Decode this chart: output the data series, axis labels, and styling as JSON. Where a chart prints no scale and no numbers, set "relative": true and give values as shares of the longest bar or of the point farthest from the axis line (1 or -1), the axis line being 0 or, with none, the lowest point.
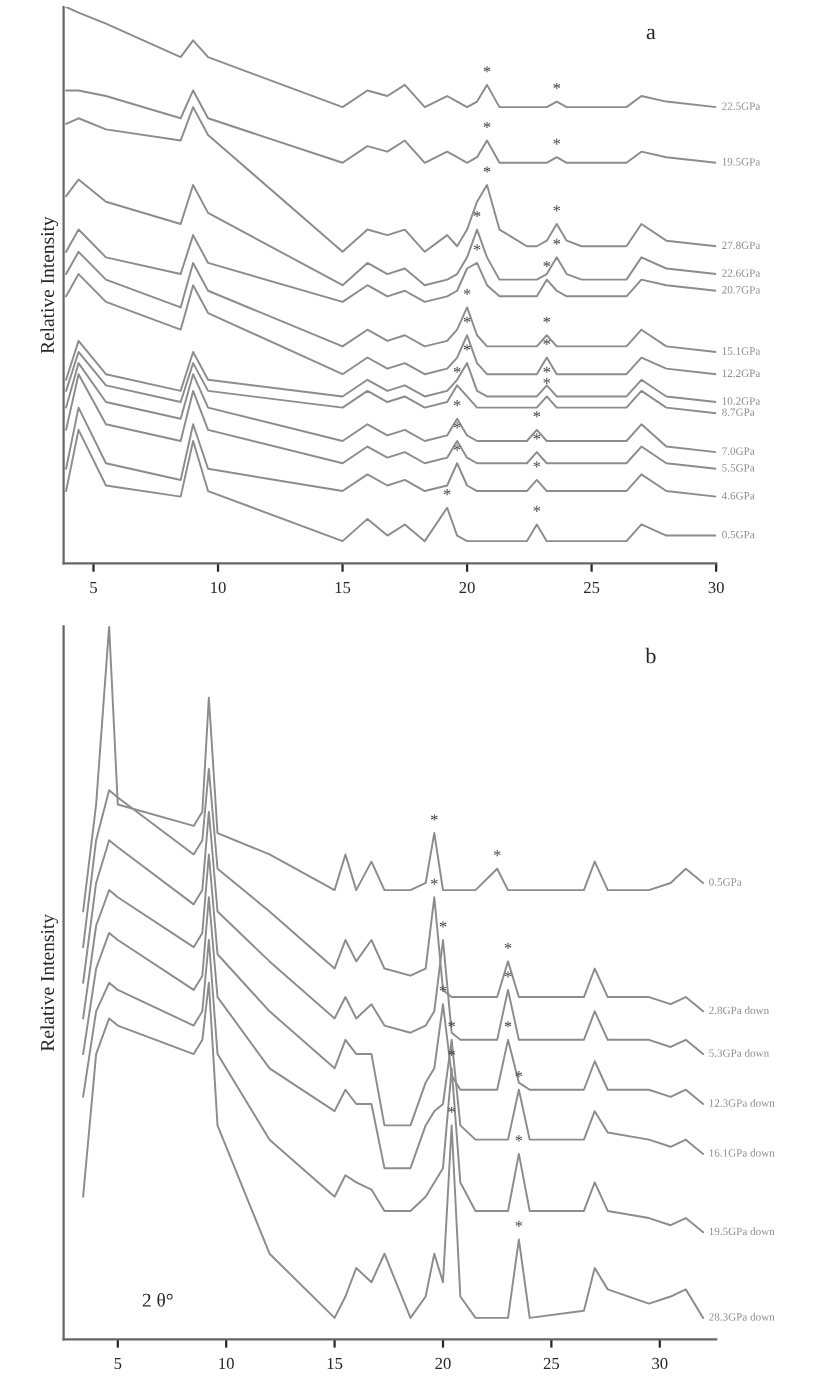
{
  "chart_data": [
    {
      "type": "line",
      "title": "a",
      "ylabel": "Relative Intensity",
      "relative": true,
      "legend": false,
      "grid": false,
      "marker": "none",
      "line_style": "solid",
      "xlim": [
        3.8,
        30
      ],
      "xticks": [
        5,
        10,
        15,
        20,
        25,
        30
      ],
      "x": [
        3.9,
        4.4,
        5.5,
        8.5,
        9.0,
        9.6,
        15.0,
        16.0,
        16.8,
        17.5,
        18.3,
        19.2,
        19.6,
        20.0,
        20.4,
        20.8,
        21.3,
        22.4,
        22.8,
        23.2,
        23.6,
        24.0,
        24.6,
        26.4,
        27.0,
        28.0,
        30.0
      ],
      "series": [
        {
          "name": "22.5GPa",
          "color": "#8c8c8c",
          "values": [
            1.0,
            0.99,
            0.97,
            0.91,
            0.94,
            0.91,
            0.82,
            0.85,
            0.84,
            0.86,
            0.82,
            0.84,
            0.83,
            0.82,
            0.83,
            0.86,
            0.82,
            0.82,
            0.82,
            0.82,
            0.83,
            0.82,
            0.82,
            0.82,
            0.84,
            0.83,
            0.82
          ]
        },
        {
          "name": "19.5GPa",
          "color": "#8c8c8c",
          "values": [
            0.85,
            0.85,
            0.84,
            0.8,
            0.85,
            0.8,
            0.72,
            0.75,
            0.74,
            0.76,
            0.72,
            0.74,
            0.73,
            0.72,
            0.73,
            0.76,
            0.72,
            0.72,
            0.72,
            0.72,
            0.73,
            0.72,
            0.72,
            0.72,
            0.74,
            0.73,
            0.72
          ]
        },
        {
          "name": "27.8GPa",
          "color": "#8c8c8c",
          "values": [
            0.79,
            0.8,
            0.78,
            0.76,
            0.82,
            0.77,
            0.56,
            0.6,
            0.59,
            0.6,
            0.56,
            0.59,
            0.57,
            0.6,
            0.65,
            0.68,
            0.6,
            0.57,
            0.57,
            0.58,
            0.61,
            0.58,
            0.57,
            0.57,
            0.61,
            0.58,
            0.57
          ]
        },
        {
          "name": "22.6GPa",
          "color": "#8c8c8c",
          "values": [
            0.66,
            0.69,
            0.65,
            0.61,
            0.68,
            0.63,
            0.5,
            0.54,
            0.52,
            0.53,
            0.5,
            0.51,
            0.52,
            0.55,
            0.6,
            0.55,
            0.51,
            0.51,
            0.51,
            0.52,
            0.55,
            0.52,
            0.51,
            0.51,
            0.55,
            0.53,
            0.52
          ]
        },
        {
          "name": "20.7GPa",
          "color": "#8c8c8c",
          "values": [
            0.56,
            0.6,
            0.55,
            0.52,
            0.59,
            0.54,
            0.47,
            0.5,
            0.48,
            0.49,
            0.47,
            0.48,
            0.49,
            0.53,
            0.54,
            0.5,
            0.48,
            0.48,
            0.48,
            0.51,
            0.49,
            0.48,
            0.48,
            0.48,
            0.51,
            0.5,
            0.49
          ]
        },
        {
          "name": "15.1GPa",
          "color": "#8c8c8c",
          "values": [
            0.52,
            0.56,
            0.51,
            0.46,
            0.54,
            0.49,
            0.39,
            0.42,
            0.4,
            0.41,
            0.39,
            0.4,
            0.42,
            0.46,
            0.41,
            0.39,
            0.39,
            0.39,
            0.39,
            0.41,
            0.39,
            0.39,
            0.39,
            0.39,
            0.42,
            0.39,
            0.38
          ]
        },
        {
          "name": "12.2GPa",
          "color": "#8c8c8c",
          "values": [
            0.48,
            0.52,
            0.47,
            0.42,
            0.5,
            0.45,
            0.34,
            0.37,
            0.35,
            0.36,
            0.34,
            0.35,
            0.37,
            0.41,
            0.36,
            0.34,
            0.34,
            0.34,
            0.34,
            0.37,
            0.34,
            0.34,
            0.34,
            0.34,
            0.37,
            0.35,
            0.34
          ]
        },
        {
          "name": "10.2GPa",
          "color": "#8c8c8c",
          "values": [
            0.33,
            0.4,
            0.34,
            0.31,
            0.38,
            0.33,
            0.3,
            0.33,
            0.31,
            0.32,
            0.3,
            0.31,
            0.33,
            0.36,
            0.31,
            0.3,
            0.3,
            0.3,
            0.3,
            0.32,
            0.3,
            0.3,
            0.3,
            0.3,
            0.33,
            0.3,
            0.29
          ]
        },
        {
          "name": "8.7GPa",
          "color": "#8c8c8c",
          "values": [
            0.31,
            0.38,
            0.32,
            0.29,
            0.36,
            0.31,
            0.28,
            0.31,
            0.29,
            0.3,
            0.28,
            0.29,
            0.32,
            0.3,
            0.28,
            0.28,
            0.28,
            0.28,
            0.28,
            0.3,
            0.28,
            0.28,
            0.28,
            0.28,
            0.31,
            0.28,
            0.27
          ]
        },
        {
          "name": "7.0GPa",
          "color": "#8c8c8c",
          "values": [
            0.28,
            0.36,
            0.29,
            0.26,
            0.34,
            0.28,
            0.22,
            0.25,
            0.23,
            0.24,
            0.22,
            0.23,
            0.26,
            0.23,
            0.22,
            0.22,
            0.22,
            0.22,
            0.24,
            0.22,
            0.22,
            0.22,
            0.22,
            0.22,
            0.25,
            0.21,
            0.2
          ]
        },
        {
          "name": "5.5GPa",
          "color": "#8c8c8c",
          "values": [
            0.24,
            0.34,
            0.25,
            0.22,
            0.31,
            0.24,
            0.18,
            0.21,
            0.19,
            0.2,
            0.18,
            0.19,
            0.22,
            0.19,
            0.18,
            0.18,
            0.18,
            0.18,
            0.2,
            0.18,
            0.18,
            0.18,
            0.18,
            0.18,
            0.21,
            0.18,
            0.17
          ]
        },
        {
          "name": "4.6GPa",
          "color": "#8c8c8c",
          "values": [
            0.17,
            0.28,
            0.18,
            0.15,
            0.25,
            0.17,
            0.13,
            0.16,
            0.14,
            0.15,
            0.13,
            0.14,
            0.18,
            0.14,
            0.13,
            0.13,
            0.13,
            0.13,
            0.15,
            0.13,
            0.13,
            0.13,
            0.13,
            0.13,
            0.16,
            0.13,
            0.12
          ]
        },
        {
          "name": "0.5GPa",
          "color": "#8c8c8c",
          "values": [
            0.13,
            0.24,
            0.14,
            0.12,
            0.22,
            0.13,
            0.04,
            0.08,
            0.05,
            0.07,
            0.04,
            0.1,
            0.05,
            0.04,
            0.04,
            0.04,
            0.04,
            0.04,
            0.07,
            0.04,
            0.04,
            0.04,
            0.04,
            0.04,
            0.07,
            0.05,
            0.05
          ]
        }
      ],
      "annotations": [
        {
          "text": "*",
          "x": 20.8,
          "y": 0.86
        },
        {
          "text": "*",
          "x": 23.6,
          "y": 0.83
        },
        {
          "text": "*",
          "x": 20.8,
          "y": 0.76
        },
        {
          "text": "*",
          "x": 23.6,
          "y": 0.73
        },
        {
          "text": "*",
          "x": 20.8,
          "y": 0.68
        },
        {
          "text": "*",
          "x": 23.6,
          "y": 0.61
        },
        {
          "text": "*",
          "x": 20.4,
          "y": 0.6
        },
        {
          "text": "*",
          "x": 23.6,
          "y": 0.55
        },
        {
          "text": "*",
          "x": 20.4,
          "y": 0.54
        },
        {
          "text": "*",
          "x": 23.2,
          "y": 0.51
        },
        {
          "text": "*",
          "x": 20.0,
          "y": 0.46
        },
        {
          "text": "*",
          "x": 23.2,
          "y": 0.41
        },
        {
          "text": "*",
          "x": 20.0,
          "y": 0.41
        },
        {
          "text": "*",
          "x": 23.2,
          "y": 0.37
        },
        {
          "text": "*",
          "x": 20.0,
          "y": 0.36
        },
        {
          "text": "*",
          "x": 23.2,
          "y": 0.32
        },
        {
          "text": "*",
          "x": 19.6,
          "y": 0.32
        },
        {
          "text": "*",
          "x": 23.2,
          "y": 0.3
        },
        {
          "text": "*",
          "x": 19.6,
          "y": 0.26
        },
        {
          "text": "*",
          "x": 22.8,
          "y": 0.24
        },
        {
          "text": "*",
          "x": 19.6,
          "y": 0.22
        },
        {
          "text": "*",
          "x": 22.8,
          "y": 0.2
        },
        {
          "text": "*",
          "x": 19.6,
          "y": 0.18
        },
        {
          "text": "*",
          "x": 22.8,
          "y": 0.15
        },
        {
          "text": "*",
          "x": 19.2,
          "y": 0.1
        },
        {
          "text": "*",
          "x": 22.8,
          "y": 0.07
        }
      ]
    },
    {
      "type": "line",
      "title": "b",
      "ylabel": "Relative Intensity",
      "xlabel": "2 θ°",
      "relative": true,
      "legend": false,
      "grid": false,
      "marker": "none",
      "line_style": "solid",
      "xlim": [
        2.5,
        32.6
      ],
      "xticks": [
        5,
        10,
        15,
        20,
        25,
        30
      ],
      "x": [
        3.4,
        4.0,
        4.6,
        5.0,
        8.5,
        8.9,
        9.2,
        9.6,
        12.0,
        15.0,
        15.5,
        16.0,
        16.7,
        17.3,
        18.5,
        19.2,
        19.6,
        20.0,
        20.4,
        20.8,
        21.5,
        22.5,
        23.0,
        23.5,
        24.0,
        26.5,
        27.0,
        27.6,
        29.5,
        30.5,
        31.2,
        32.0
      ],
      "series": [
        {
          "name": "0.5GPa",
          "color": "#8c8c8c",
          "values": [
            0.6,
            0.75,
            1.0,
            0.75,
            0.72,
            0.74,
            0.9,
            0.71,
            0.68,
            0.63,
            0.68,
            0.63,
            0.67,
            0.63,
            0.63,
            0.64,
            0.71,
            0.63,
            0.63,
            0.63,
            0.63,
            0.66,
            0.63,
            0.63,
            0.63,
            0.63,
            0.67,
            0.63,
            0.63,
            0.64,
            0.66,
            0.64
          ]
        },
        {
          "name": "2.8GPa down",
          "color": "#8c8c8c",
          "values": [
            0.55,
            0.7,
            0.77,
            0.76,
            0.68,
            0.7,
            0.8,
            0.66,
            0.6,
            0.52,
            0.56,
            0.53,
            0.56,
            0.52,
            0.51,
            0.52,
            0.62,
            0.49,
            0.48,
            0.48,
            0.48,
            0.48,
            0.53,
            0.48,
            0.48,
            0.48,
            0.52,
            0.48,
            0.48,
            0.47,
            0.48,
            0.46
          ]
        },
        {
          "name": "5.3GPa down",
          "color": "#8c8c8c",
          "values": [
            0.5,
            0.64,
            0.7,
            0.69,
            0.61,
            0.63,
            0.74,
            0.6,
            0.53,
            0.45,
            0.48,
            0.45,
            0.47,
            0.44,
            0.43,
            0.44,
            0.46,
            0.56,
            0.43,
            0.42,
            0.42,
            0.42,
            0.49,
            0.42,
            0.42,
            0.42,
            0.46,
            0.42,
            0.42,
            0.41,
            0.42,
            0.4
          ]
        },
        {
          "name": "12.3GPa down",
          "color": "#8c8c8c",
          "values": [
            0.45,
            0.58,
            0.63,
            0.62,
            0.55,
            0.57,
            0.68,
            0.54,
            0.46,
            0.38,
            0.42,
            0.4,
            0.4,
            0.3,
            0.3,
            0.36,
            0.38,
            0.47,
            0.37,
            0.35,
            0.35,
            0.35,
            0.42,
            0.36,
            0.35,
            0.35,
            0.39,
            0.35,
            0.35,
            0.34,
            0.35,
            0.33
          ]
        },
        {
          "name": "16.1GPa down",
          "color": "#8c8c8c",
          "values": [
            0.4,
            0.52,
            0.57,
            0.56,
            0.49,
            0.51,
            0.62,
            0.48,
            0.38,
            0.32,
            0.35,
            0.33,
            0.33,
            0.24,
            0.24,
            0.3,
            0.32,
            0.33,
            0.42,
            0.3,
            0.28,
            0.28,
            0.28,
            0.35,
            0.28,
            0.28,
            0.32,
            0.29,
            0.28,
            0.27,
            0.28,
            0.26
          ]
        },
        {
          "name": "19.5GPa down",
          "color": "#8c8c8c",
          "values": [
            0.34,
            0.46,
            0.5,
            0.49,
            0.44,
            0.46,
            0.56,
            0.4,
            0.28,
            0.2,
            0.23,
            0.22,
            0.21,
            0.18,
            0.18,
            0.2,
            0.22,
            0.24,
            0.38,
            0.22,
            0.18,
            0.18,
            0.18,
            0.26,
            0.18,
            0.18,
            0.22,
            0.18,
            0.17,
            0.16,
            0.17,
            0.15
          ]
        },
        {
          "name": "28.3GPa down",
          "color": "#8c8c8c",
          "values": [
            0.2,
            0.4,
            0.45,
            0.44,
            0.4,
            0.42,
            0.5,
            0.3,
            0.12,
            0.03,
            0.06,
            0.1,
            0.08,
            0.12,
            0.03,
            0.06,
            0.12,
            0.08,
            0.3,
            0.06,
            0.03,
            0.03,
            0.03,
            0.14,
            0.03,
            0.04,
            0.1,
            0.07,
            0.05,
            0.06,
            0.07,
            0.03
          ]
        }
      ],
      "annotations": [
        {
          "text": "*",
          "x": 19.6,
          "y": 0.71
        },
        {
          "text": "*",
          "x": 22.5,
          "y": 0.66
        },
        {
          "text": "*",
          "x": 19.6,
          "y": 0.62
        },
        {
          "text": "*",
          "x": 23.0,
          "y": 0.53
        },
        {
          "text": "*",
          "x": 20.0,
          "y": 0.56
        },
        {
          "text": "*",
          "x": 23.0,
          "y": 0.49
        },
        {
          "text": "*",
          "x": 20.0,
          "y": 0.47
        },
        {
          "text": "*",
          "x": 23.0,
          "y": 0.42
        },
        {
          "text": "*",
          "x": 20.4,
          "y": 0.42
        },
        {
          "text": "*",
          "x": 23.5,
          "y": 0.35
        },
        {
          "text": "*",
          "x": 20.4,
          "y": 0.38
        },
        {
          "text": "*",
          "x": 23.5,
          "y": 0.26
        },
        {
          "text": "*",
          "x": 20.4,
          "y": 0.3
        },
        {
          "text": "*",
          "x": 23.5,
          "y": 0.14
        }
      ]
    }
  ]
}
